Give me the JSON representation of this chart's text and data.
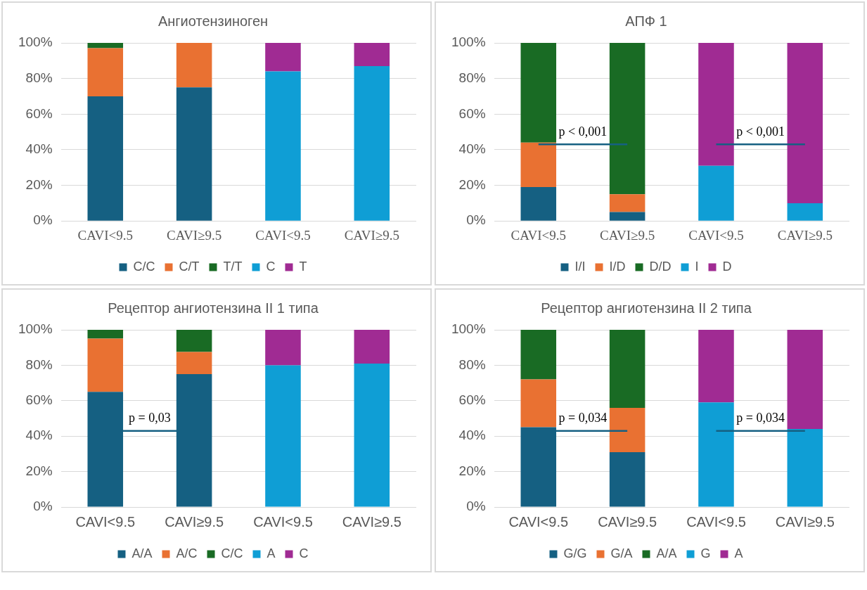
{
  "chart_data": [
    {
      "type": "bar",
      "title": "Ангиотензиноген",
      "categories": [
        "CAVI<9.5",
        "CAVI≥9.5",
        "CAVI<9.5",
        "CAVI≥9.5"
      ],
      "stacked": true,
      "grid": "y",
      "legend": "bottom",
      "ylim": [
        0,
        100
      ],
      "yticks": [
        {
          "value": 0,
          "label": "0%"
        },
        {
          "value": 20,
          "label": "20%"
        },
        {
          "value": 40,
          "label": "40%"
        },
        {
          "value": 60,
          "label": "60%"
        },
        {
          "value": 80,
          "label": "80%"
        },
        {
          "value": 100,
          "label": "100%"
        }
      ],
      "series": [
        {
          "name": "C/C",
          "color": "#156082",
          "values": [
            70,
            75,
            null,
            null
          ]
        },
        {
          "name": "C/T",
          "color": "#e97132",
          "values": [
            27,
            25,
            null,
            null
          ]
        },
        {
          "name": "T/T",
          "color": "#196b24",
          "values": [
            3,
            null,
            null,
            null
          ]
        },
        {
          "name": "C",
          "color": "#0f9ed5",
          "values": [
            null,
            null,
            84,
            87
          ]
        },
        {
          "name": "T",
          "color": "#a02b93",
          "values": [
            null,
            null,
            16,
            13
          ]
        }
      ]
    },
    {
      "type": "bar",
      "title": "АПФ 1",
      "categories": [
        "CAVI<9.5",
        "CAVI≥9.5",
        "CAVI<9.5",
        "CAVI≥9.5"
      ],
      "stacked": true,
      "grid": "y",
      "legend": "bottom",
      "ylim": [
        0,
        100
      ],
      "yticks": [
        {
          "value": 0,
          "label": "0%"
        },
        {
          "value": 20,
          "label": "20%"
        },
        {
          "value": 40,
          "label": "40%"
        },
        {
          "value": 60,
          "label": "60%"
        },
        {
          "value": 80,
          "label": "80%"
        },
        {
          "value": 100,
          "label": "100%"
        }
      ],
      "annotations": [
        "p < 0,001",
        "p < 0,001"
      ],
      "series": [
        {
          "name": "I/I",
          "color": "#156082",
          "values": [
            19,
            5,
            null,
            null
          ]
        },
        {
          "name": "I/D",
          "color": "#e97132",
          "values": [
            25,
            10,
            null,
            null
          ]
        },
        {
          "name": "D/D",
          "color": "#196b24",
          "values": [
            56,
            85,
            null,
            null
          ]
        },
        {
          "name": "I",
          "color": "#0f9ed5",
          "values": [
            null,
            null,
            31,
            10
          ]
        },
        {
          "name": "D",
          "color": "#a02b93",
          "values": [
            null,
            null,
            69,
            90
          ]
        }
      ]
    },
    {
      "type": "bar",
      "title": "Рецептор ангиотензина II 1 типа",
      "categories": [
        "CAVI<9.5",
        "CAVI≥9.5",
        "CAVI<9.5",
        "CAVI≥9.5"
      ],
      "stacked": true,
      "grid": "y",
      "legend": "bottom",
      "ylim": [
        0,
        100
      ],
      "yticks": [
        {
          "value": 0,
          "label": "0%"
        },
        {
          "value": 20,
          "label": "20%"
        },
        {
          "value": 40,
          "label": "40%"
        },
        {
          "value": 60,
          "label": "60%"
        },
        {
          "value": 80,
          "label": "80%"
        },
        {
          "value": 100,
          "label": "100%"
        }
      ],
      "annotations": [
        "p = 0,03"
      ],
      "series": [
        {
          "name": "A/A",
          "color": "#156082",
          "values": [
            65,
            75,
            null,
            null
          ]
        },
        {
          "name": "A/C",
          "color": "#e97132",
          "values": [
            30,
            12.5,
            null,
            null
          ]
        },
        {
          "name": "C/C",
          "color": "#196b24",
          "values": [
            5,
            12.5,
            null,
            null
          ]
        },
        {
          "name": "A",
          "color": "#0f9ed5",
          "values": [
            null,
            null,
            80,
            81
          ]
        },
        {
          "name": "C",
          "color": "#a02b93",
          "values": [
            null,
            null,
            20,
            19
          ]
        }
      ]
    },
    {
      "type": "bar",
      "title": "Рецептор ангиотензина II 2 типа",
      "categories": [
        "CAVI<9.5",
        "CAVI≥9.5",
        "CAVI<9.5",
        "CAVI≥9.5"
      ],
      "stacked": true,
      "grid": "y",
      "legend": "bottom",
      "ylim": [
        0,
        100
      ],
      "yticks": [
        {
          "value": 0,
          "label": "0%"
        },
        {
          "value": 20,
          "label": "20%"
        },
        {
          "value": 40,
          "label": "40%"
        },
        {
          "value": 60,
          "label": "60%"
        },
        {
          "value": 80,
          "label": "80%"
        },
        {
          "value": 100,
          "label": "100%"
        }
      ],
      "annotations": [
        "p = 0,034",
        "p = 0,034"
      ],
      "series": [
        {
          "name": "G/G",
          "color": "#156082",
          "values": [
            45,
            31,
            null,
            null
          ]
        },
        {
          "name": "G/A",
          "color": "#e97132",
          "values": [
            27,
            25,
            null,
            null
          ]
        },
        {
          "name": "A/A",
          "color": "#196b24",
          "values": [
            28,
            44,
            null,
            null
          ]
        },
        {
          "name": "G",
          "color": "#0f9ed5",
          "values": [
            null,
            null,
            59,
            44
          ]
        },
        {
          "name": "A",
          "color": "#a02b93",
          "values": [
            null,
            null,
            41,
            56
          ]
        }
      ]
    }
  ]
}
